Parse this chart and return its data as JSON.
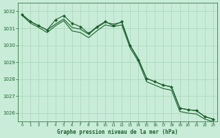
{
  "title": "Graphe pression niveau de la mer (hPa)",
  "background_color": "#c8ecd8",
  "grid_color": "#a8d4b8",
  "line_color": "#1a5e2a",
  "xlim": [
    -0.5,
    23.5
  ],
  "ylim": [
    1025.5,
    1032.5
  ],
  "yticks": [
    1026,
    1027,
    1028,
    1029,
    1030,
    1031,
    1032
  ],
  "xticks": [
    0,
    1,
    2,
    3,
    4,
    5,
    6,
    7,
    8,
    9,
    10,
    11,
    12,
    13,
    14,
    15,
    16,
    17,
    18,
    19,
    20,
    21,
    22,
    23
  ],
  "series_line1": {
    "x": [
      0,
      1,
      2,
      3,
      4,
      5,
      6,
      7,
      8,
      9,
      10,
      11,
      12,
      13,
      14,
      15,
      16,
      17,
      18,
      19,
      20,
      21,
      22,
      23
    ],
    "y": [
      1031.8,
      1031.4,
      1031.15,
      1030.9,
      1031.25,
      1031.55,
      1031.05,
      1030.95,
      1030.65,
      1031.05,
      1031.35,
      1031.25,
      1031.35,
      1030.0,
      1029.2,
      1028.05,
      1027.85,
      1027.65,
      1027.55,
      1026.3,
      1026.2,
      1026.15,
      1025.8,
      1025.65
    ]
  },
  "series_line2": {
    "x": [
      0,
      1,
      2,
      3,
      4,
      5,
      6,
      7,
      8,
      9,
      10,
      11,
      12,
      13,
      14,
      15,
      16,
      17,
      18,
      19,
      20,
      21,
      22,
      23
    ],
    "y": [
      1031.75,
      1031.3,
      1031.05,
      1030.75,
      1031.15,
      1031.45,
      1030.85,
      1030.75,
      1030.45,
      1030.85,
      1031.2,
      1031.1,
      1031.2,
      1029.85,
      1029.05,
      1027.85,
      1027.65,
      1027.45,
      1027.35,
      1026.1,
      1026.0,
      1025.95,
      1025.65,
      1025.5
    ]
  },
  "series_markers": {
    "x": [
      0,
      1,
      2,
      3,
      4,
      5,
      6,
      7,
      8,
      9,
      10,
      11,
      12,
      13,
      14,
      15,
      16,
      17,
      18,
      19,
      20,
      21,
      22,
      23
    ],
    "y": [
      1031.8,
      1031.4,
      1031.15,
      1030.9,
      1031.5,
      1031.75,
      1031.3,
      1031.1,
      1030.7,
      1031.1,
      1031.4,
      1031.15,
      1031.4,
      1030.0,
      1029.15,
      1028.05,
      1027.85,
      1027.65,
      1027.55,
      1026.3,
      1026.2,
      1026.15,
      1025.8,
      1025.65
    ]
  }
}
